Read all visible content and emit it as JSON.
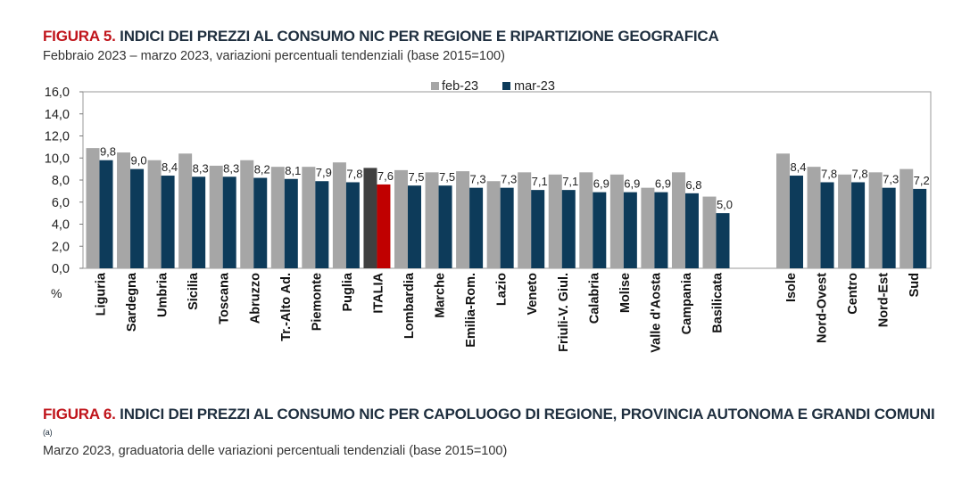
{
  "figure5": {
    "label": "FIGURA 5.",
    "title": "INDICI DEI PREZZI AL CONSUMO NIC PER REGIONE E RIPARTIZIONE GEOGRAFICA",
    "subtitle": "Febbraio 2023 – marzo 2023, variazioni percentuali tendenziali (base 2015=100)"
  },
  "figure6": {
    "label": "FIGURA 6.",
    "title": "INDICI DEI PREZZI AL CONSUMO NIC PER CAPOLUOGO DI REGIONE, PROVINCIA AUTONOMA E GRANDI COMUNI",
    "note": "(a)",
    "subtitle": "Marzo 2023, graduatoria delle variazioni percentuali tendenziali (base 2015=100)"
  },
  "colors": {
    "feb": "#a6a6a6",
    "mar": "#0d3b5a",
    "italia_feb": "#404040",
    "italia_mar": "#c00000"
  },
  "chart_data": {
    "type": "bar",
    "title": "INDICI DEI PREZZI AL CONSUMO NIC PER REGIONE E RIPARTIZIONE GEOGRAFICA",
    "ylabel": "%",
    "ylim": [
      0,
      16
    ],
    "yticks": [
      "0,0",
      "2,0",
      "4,0",
      "6,0",
      "8,0",
      "10,0",
      "12,0",
      "14,0",
      "16,0"
    ],
    "legend_position": "top-center",
    "categories": [
      "Liguria",
      "Sardegna",
      "Umbria",
      "Sicilia",
      "Toscana",
      "Abruzzo",
      "Tr.-Alto Ad.",
      "Piemonte",
      "Puglia",
      "ITALIA",
      "Lombardia",
      "Marche",
      "Emilia-Rom.",
      "Lazio",
      "Veneto",
      "Friuli-V. Giul.",
      "Calabria",
      "Molise",
      "Valle d'Aosta",
      "Campania",
      "Basilicata",
      "Isole",
      "Nord-Ovest",
      "Centro",
      "Nord-Est",
      "Sud"
    ],
    "series": [
      {
        "name": "feb-23",
        "values": [
          10.9,
          10.5,
          9.8,
          10.4,
          9.3,
          9.8,
          9.2,
          9.2,
          9.6,
          9.1,
          8.9,
          8.7,
          8.8,
          7.9,
          8.7,
          8.5,
          8.7,
          8.5,
          7.3,
          8.7,
          6.5,
          10.4,
          9.2,
          8.5,
          8.7,
          9.0
        ]
      },
      {
        "name": "mar-23",
        "values": [
          9.8,
          9.0,
          8.4,
          8.3,
          8.3,
          8.2,
          8.1,
          7.9,
          7.8,
          7.6,
          7.5,
          7.5,
          7.3,
          7.3,
          7.1,
          7.1,
          6.9,
          6.9,
          6.9,
          6.8,
          5.0,
          8.4,
          7.8,
          7.8,
          7.3,
          7.2
        ]
      }
    ],
    "data_labels": [
      "9,8",
      "9,0",
      "8,4",
      "8,3",
      "8,3",
      "8,2",
      "8,1",
      "7,9",
      "7,8",
      "7,6",
      "7,5",
      "7,5",
      "7,3",
      "7,3",
      "7,1",
      "7,1",
      "6,9",
      "6,9",
      "6,9",
      "6,8",
      "5,0",
      "8,4",
      "7,8",
      "7,8",
      "7,3",
      "7,2"
    ],
    "highlight_category": "ITALIA"
  }
}
